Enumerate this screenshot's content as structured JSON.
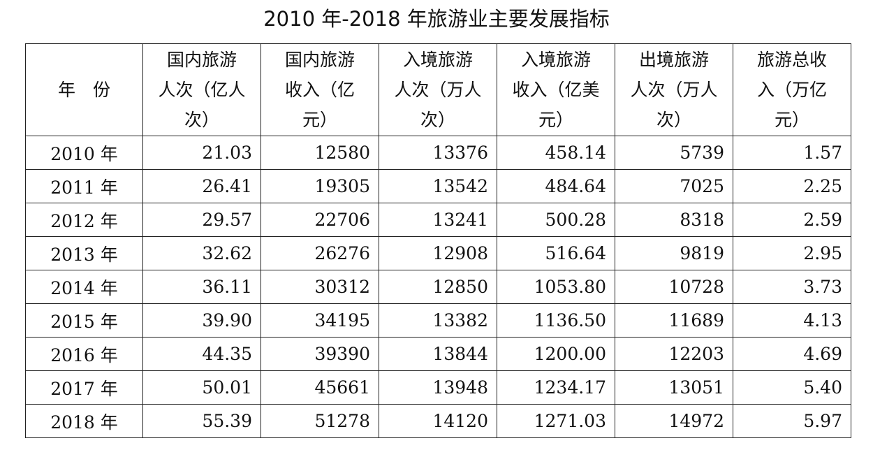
{
  "title": "2010 年-2018 年旅游业主要发展指标",
  "table": {
    "header": [
      "年　份",
      "国内旅游\n人次（亿人\n次）",
      "国内旅游\n收入（亿\n元）",
      "入境旅游\n人次（万人\n次）",
      "入境旅游\n收入（亿美\n元）",
      "出境旅游\n人次（万人\n次）",
      "旅游总收\n入（万亿\n元）"
    ],
    "rows": [
      [
        "2010 年",
        "21.03",
        "12580",
        "13376",
        "458.14",
        "5739",
        "1.57"
      ],
      [
        "2011 年",
        "26.41",
        "19305",
        "13542",
        "484.64",
        "7025",
        "2.25"
      ],
      [
        "2012 年",
        "29.57",
        "22706",
        "13241",
        "500.28",
        "8318",
        "2.59"
      ],
      [
        "2013 年",
        "32.62",
        "26276",
        "12908",
        "516.64",
        "9819",
        "2.95"
      ],
      [
        "2014 年",
        "36.11",
        "30312",
        "12850",
        "1053.80",
        "10728",
        "3.73"
      ],
      [
        "2015 年",
        "39.90",
        "34195",
        "13382",
        "1136.50",
        "11689",
        "4.13"
      ],
      [
        "2016 年",
        "44.35",
        "39390",
        "13844",
        "1200.00",
        "12203",
        "4.69"
      ],
      [
        "2017 年",
        "50.01",
        "45661",
        "13948",
        "1234.17",
        "13051",
        "5.40"
      ],
      [
        "2018 年",
        "55.39",
        "51278",
        "14120",
        "1271.03",
        "14972",
        "5.97"
      ]
    ]
  }
}
